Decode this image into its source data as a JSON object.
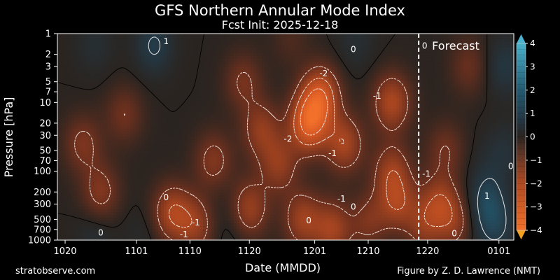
{
  "chart_data": {
    "type": "heatmap",
    "title": "GFS Northern Annular Mode Index",
    "subtitle": "Fcst Init: 2025-12-18",
    "xlabel": "Date (MMDD)",
    "ylabel": "Pressure [hPa]",
    "x_ticks": [
      {
        "label": "1020",
        "day": 0
      },
      {
        "label": "1101",
        "day": 12
      },
      {
        "label": "1110",
        "day": 21
      },
      {
        "label": "1120",
        "day": 31
      },
      {
        "label": "1201",
        "day": 42
      },
      {
        "label": "1210",
        "day": 51
      },
      {
        "label": "1220",
        "day": 61
      },
      {
        "label": "0101",
        "day": 73
      }
    ],
    "x_range_days": [
      -1.3,
      75.5
    ],
    "y_scale": "log",
    "y_range": [
      1000,
      1
    ],
    "y_ticks": [
      1,
      2,
      3,
      5,
      7,
      10,
      20,
      30,
      50,
      70,
      100,
      200,
      300,
      500,
      700,
      1000
    ],
    "forecast_start_day": 59.5,
    "forecast_label": "Forecast",
    "colorbar": {
      "min": -4,
      "max": 4,
      "ticks": [
        4,
        3,
        2,
        1,
        0,
        -1,
        -2,
        -3,
        -4
      ],
      "extend": "both",
      "colors": {
        "neg_max": "#e0501a",
        "neg_mid": "#8a3a1e",
        "zero": "#2a2420",
        "pos_mid": "#1f4a5c",
        "pos_max": "#4ab2cc"
      }
    },
    "contour_labels": [
      {
        "text": "1",
        "day": 17,
        "p": 1.3
      },
      {
        "text": "0",
        "day": 48.5,
        "p": 1.7
      },
      {
        "text": "0",
        "day": 60.5,
        "p": 1.5
      },
      {
        "text": "-2",
        "day": 43.5,
        "p": 3.8
      },
      {
        "text": "-1",
        "day": 52.5,
        "p": 8
      },
      {
        "text": "-2",
        "day": 37.5,
        "p": 34
      },
      {
        "text": "-1",
        "day": 45,
        "p": 55
      },
      {
        "text": "-1",
        "day": 60.8,
        "p": 110
      },
      {
        "text": "0",
        "day": 75,
        "p": 85
      },
      {
        "text": "0",
        "day": 17,
        "p": 240
      },
      {
        "text": "-1",
        "day": 46.5,
        "p": 250
      },
      {
        "text": "0",
        "day": 48.5,
        "p": 330
      },
      {
        "text": "0",
        "day": 41,
        "p": 520
      },
      {
        "text": "-1",
        "day": 22,
        "p": 560
      },
      {
        "text": "-1",
        "day": 20,
        "p": 830
      },
      {
        "text": "0",
        "day": 6,
        "p": 780
      },
      {
        "text": "0",
        "day": 65.5,
        "p": 800
      },
      {
        "text": "1",
        "day": 71,
        "p": 230
      }
    ],
    "anomaly_centers": [
      {
        "day": 41,
        "p": 20,
        "value": -3.1
      },
      {
        "day": 43,
        "p": 8,
        "value": -2.6
      },
      {
        "day": 47,
        "p": 40,
        "value": -1.9
      },
      {
        "day": 55,
        "p": 10,
        "value": -2.0
      },
      {
        "day": 55,
        "p": 100,
        "value": -1.6
      },
      {
        "day": 33,
        "p": 25,
        "value": -1.5
      },
      {
        "day": 36,
        "p": 80,
        "value": -1.5
      },
      {
        "day": 30,
        "p": 5,
        "value": -1.1
      },
      {
        "day": 25,
        "p": 70,
        "value": -1.3
      },
      {
        "day": 10,
        "p": 15,
        "value": -1.0
      },
      {
        "day": 3,
        "p": 40,
        "value": -1.2
      },
      {
        "day": 6,
        "p": 200,
        "value": -1.3
      },
      {
        "day": 18,
        "p": 400,
        "value": -1.9
      },
      {
        "day": 22,
        "p": 600,
        "value": -1.5
      },
      {
        "day": 31,
        "p": 350,
        "value": -1.7
      },
      {
        "day": 40,
        "p": 500,
        "value": -1.7
      },
      {
        "day": 45,
        "p": 700,
        "value": -1.8
      },
      {
        "day": 51,
        "p": 500,
        "value": -1.3
      },
      {
        "day": 56,
        "p": 300,
        "value": -1.6
      },
      {
        "day": 60,
        "p": 700,
        "value": -1.3
      },
      {
        "day": 63,
        "p": 300,
        "value": -1.8
      },
      {
        "day": 64,
        "p": 50,
        "value": -1.0
      },
      {
        "day": 66,
        "p": 600,
        "value": -1.2
      },
      {
        "day": 68,
        "p": 3,
        "value": -0.9
      },
      {
        "day": 71,
        "p": 300,
        "value": 1.3
      },
      {
        "day": 73,
        "p": 700,
        "value": 0.8
      },
      {
        "day": 74,
        "p": 3,
        "value": 0.9
      },
      {
        "day": 74,
        "p": 50,
        "value": 0.6
      },
      {
        "day": 15,
        "p": 1.5,
        "value": 1.1
      },
      {
        "day": 5,
        "p": 1.5,
        "value": 0.5
      },
      {
        "day": 49,
        "p": 1.3,
        "value": 0.5
      },
      {
        "day": 38,
        "p": 1.2,
        "value": -0.5
      },
      {
        "day": 5,
        "p": 950,
        "value": 0.5
      },
      {
        "day": 13,
        "p": 900,
        "value": 0.3
      },
      {
        "day": 28,
        "p": 900,
        "value": 0.3
      },
      {
        "day": 58,
        "p": 950,
        "value": 0.3
      },
      {
        "day": 69,
        "p": 950,
        "value": 0.3
      },
      {
        "day": 27,
        "p": 300,
        "value": 0.2
      },
      {
        "day": 50,
        "p": 350,
        "value": 0.2
      },
      {
        "day": 71,
        "p": 100,
        "value": 0.3
      }
    ]
  },
  "footer": {
    "left": "stratobserve.com",
    "right": "Figure by Z. D. Lawrence (NMT)"
  }
}
